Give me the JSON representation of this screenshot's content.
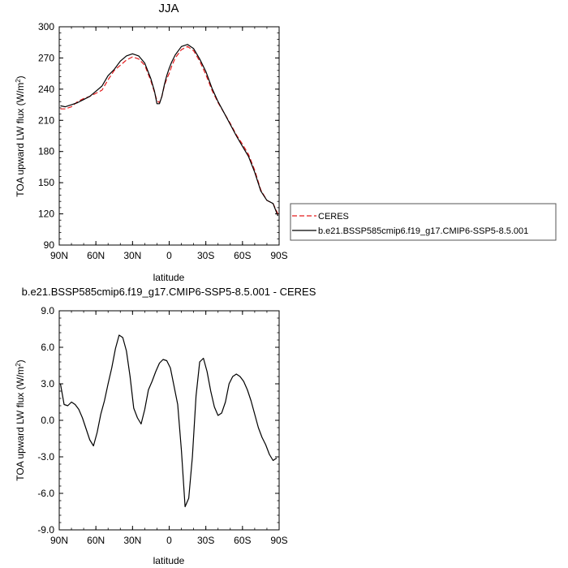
{
  "chart_data": [
    {
      "type": "line",
      "title": "JJA",
      "xlabel": "latitude",
      "ylabel": "TOA upward LW flux (W/m",
      "ylabel_sup": "2",
      "ylabel_close": ")",
      "xlim": [
        90,
        -90
      ],
      "ylim": [
        90,
        300
      ],
      "xticks": [
        90,
        60,
        30,
        0,
        -30,
        -60,
        -90
      ],
      "xtick_labels": [
        "90N",
        "60N",
        "30N",
        "0",
        "30S",
        "60S",
        "90S"
      ],
      "yticks": [
        90,
        120,
        150,
        180,
        210,
        240,
        270,
        300
      ],
      "ytick_labels": [
        "90",
        "120",
        "150",
        "180",
        "210",
        "240",
        "270",
        "300"
      ],
      "legend_position": "right",
      "series": [
        {
          "name": "CERES",
          "color": "#e41a1c",
          "dash": true,
          "x": [
            89,
            85,
            80,
            75,
            70,
            65,
            60,
            55,
            50,
            45,
            40,
            35,
            30,
            25,
            20,
            15,
            12,
            10,
            8,
            6,
            4,
            2,
            0,
            -2,
            -5,
            -10,
            -15,
            -20,
            -25,
            -30,
            -35,
            -40,
            -45,
            -50,
            -55,
            -60,
            -65,
            -70,
            -75,
            -80,
            -85,
            -89
          ],
          "y": [
            221,
            221,
            223,
            228,
            231,
            233,
            236,
            239,
            249,
            258,
            263,
            268,
            271,
            269,
            263,
            248,
            237,
            229,
            227,
            233,
            243,
            250,
            255,
            262,
            270,
            278,
            281,
            277,
            267,
            254,
            239,
            227,
            217,
            207,
            196,
            187,
            177,
            162,
            143,
            133,
            130,
            120
          ]
        },
        {
          "name": "b.e21.BSSP585cmip6.f19_g17.CMIP6-SSP5-8.5.001",
          "color": "#000000",
          "dash": false,
          "x": [
            89,
            85,
            80,
            75,
            70,
            65,
            60,
            55,
            50,
            45,
            40,
            35,
            30,
            25,
            20,
            15,
            12,
            10,
            8,
            6,
            4,
            2,
            0,
            -2,
            -5,
            -10,
            -15,
            -20,
            -25,
            -30,
            -35,
            -40,
            -45,
            -50,
            -55,
            -60,
            -65,
            -70,
            -75,
            -80,
            -85,
            -89
          ],
          "y": [
            224,
            223,
            225,
            227,
            230,
            233,
            238,
            243,
            253,
            259,
            267,
            272,
            274,
            272,
            265,
            250,
            238,
            226,
            226,
            233,
            244,
            253,
            260,
            266,
            273,
            281,
            283,
            279,
            269,
            257,
            241,
            228,
            217,
            206,
            195,
            185,
            175,
            160,
            142,
            133,
            130,
            118
          ]
        }
      ]
    },
    {
      "type": "line",
      "title": "b.e21.BSSP585cmip6.f19_g17.CMIP6-SSP5-8.5.001 - CERES",
      "xlabel": "latitude",
      "ylabel": "TOA upward LW flux (W/m",
      "ylabel_sup": "2",
      "ylabel_close": ")",
      "xlim": [
        90,
        -90
      ],
      "ylim": [
        -9,
        9
      ],
      "xticks": [
        90,
        60,
        30,
        0,
        -30,
        -60,
        -90
      ],
      "xtick_labels": [
        "90N",
        "60N",
        "30N",
        "0",
        "30S",
        "60S",
        "90S"
      ],
      "yticks": [
        -9,
        -6,
        -3,
        0,
        3,
        6,
        9
      ],
      "ytick_labels": [
        "-9.0",
        "-6.0",
        "-3.0",
        "0.0",
        "3.0",
        "6.0",
        "9.0"
      ],
      "series": [
        {
          "color": "#000000",
          "x": [
            89,
            86,
            83,
            80,
            77,
            74,
            71,
            68,
            65,
            62,
            59,
            56,
            53,
            50,
            47,
            44,
            41,
            38,
            35,
            32,
            29,
            26,
            23,
            20,
            17,
            14,
            11,
            8,
            5,
            2,
            -1,
            -4,
            -7,
            -10,
            -13,
            -16,
            -19,
            -22,
            -25,
            -28,
            -31,
            -34,
            -37,
            -40,
            -43,
            -46,
            -49,
            -52,
            -55,
            -58,
            -61,
            -64,
            -67,
            -70,
            -73,
            -76,
            -79,
            -82,
            -85,
            -88
          ],
          "y": [
            3.0,
            1.3,
            1.2,
            1.5,
            1.3,
            0.9,
            0.2,
            -0.7,
            -1.6,
            -2.1,
            -1.0,
            0.5,
            1.6,
            3.0,
            4.3,
            5.9,
            7.0,
            6.8,
            5.7,
            3.6,
            1.0,
            0.2,
            -0.3,
            0.9,
            2.5,
            3.2,
            4.0,
            4.7,
            5.0,
            4.9,
            4.3,
            2.8,
            1.3,
            -2.5,
            -7.1,
            -6.4,
            -3.0,
            2.0,
            4.8,
            5.1,
            4.0,
            2.4,
            1.1,
            0.4,
            0.6,
            1.5,
            3.0,
            3.6,
            3.8,
            3.6,
            3.2,
            2.5,
            1.6,
            0.5,
            -0.6,
            -1.4,
            -2.0,
            -2.8,
            -3.3,
            -3.1
          ]
        }
      ]
    }
  ]
}
